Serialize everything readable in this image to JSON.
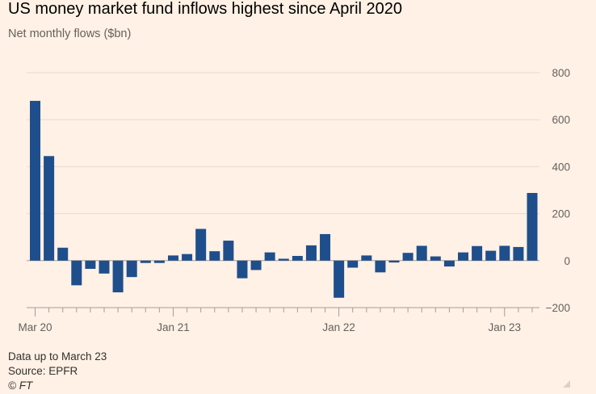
{
  "chart_data": {
    "type": "bar",
    "title": "US money market fund inflows highest since April 2020",
    "subtitle": "Net monthly flows ($bn)",
    "ylim": [
      -200,
      800
    ],
    "yticks": [
      800,
      600,
      400,
      200,
      0,
      -200
    ],
    "ytick_labels": [
      "800",
      "600",
      "400",
      "200",
      "0",
      "−200"
    ],
    "xtick_labels": [
      {
        "label": "Mar 20",
        "index": 0
      },
      {
        "label": "Jan 21",
        "index": 10
      },
      {
        "label": "Jan 22",
        "index": 22
      },
      {
        "label": "Jan 23",
        "index": 34
      }
    ],
    "categories": [
      "Mar 20",
      "Apr 20",
      "May 20",
      "Jun 20",
      "Jul 20",
      "Aug 20",
      "Sep 20",
      "Oct 20",
      "Nov 20",
      "Dec 20",
      "Jan 21",
      "Feb 21",
      "Mar 21",
      "Apr 21",
      "May 21",
      "Jun 21",
      "Jul 21",
      "Aug 21",
      "Sep 21",
      "Oct 21",
      "Nov 21",
      "Dec 21",
      "Jan 22",
      "Feb 22",
      "Mar 22",
      "Apr 22",
      "May 22",
      "Jun 22",
      "Jul 22",
      "Aug 22",
      "Sep 22",
      "Oct 22",
      "Nov 22",
      "Dec 22",
      "Jan 23",
      "Feb 23",
      "Mar 23"
    ],
    "values": [
      680,
      445,
      55,
      -105,
      -35,
      -55,
      -135,
      -70,
      -10,
      -10,
      22,
      28,
      135,
      40,
      85,
      -75,
      -40,
      35,
      8,
      20,
      65,
      113,
      -158,
      -30,
      22,
      -50,
      -8,
      33,
      63,
      18,
      -25,
      35,
      62,
      42,
      63,
      58,
      288
    ],
    "bar_color": "#1f4e8c",
    "grid": true
  },
  "footer": {
    "note": "Data up to March 23",
    "source": "Source: EPFR",
    "credit": "© FT"
  }
}
